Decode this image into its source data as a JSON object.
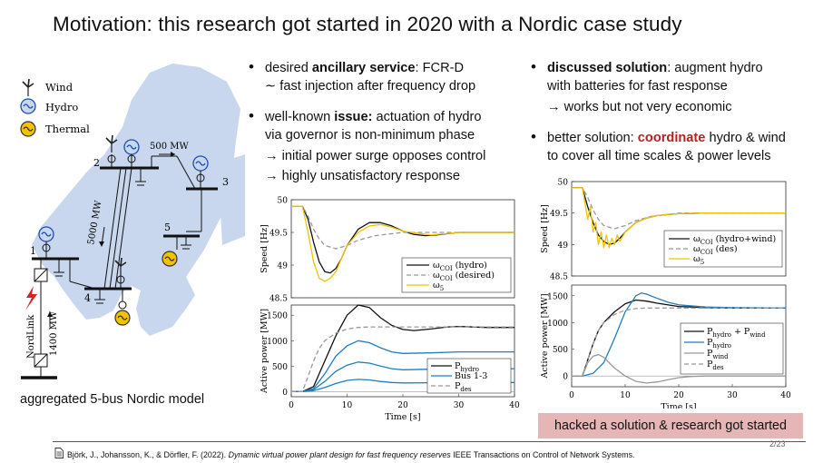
{
  "title": "Motivation: this research got started in 2020 with a Nordic case study",
  "legend_map": {
    "wind": "Wind",
    "hydro": "Hydro",
    "thermal": "Thermal"
  },
  "map": {
    "flow_top": "500 MW",
    "flow_mid": "5000 MW",
    "flow_link": "1400 MW",
    "link_name": "NordLink",
    "buses": [
      "1",
      "2",
      "3",
      "4",
      "5"
    ],
    "caption": "aggregated 5-bus Nordic model"
  },
  "middle": {
    "b1_l1a": "desired ",
    "b1_l1b": "ancillary service",
    "b1_l1c": ": FCR-D",
    "b1_l2": "∼ fast injection after frequency drop",
    "b2_l1a": "well-known ",
    "b2_l1b": "issue:",
    "b2_l1c": " actuation of hydro",
    "b2_l2": "via governor is non-minimum phase",
    "b2_s1": "→ initial power surge opposes control",
    "b2_s2": "→ highly unsatisfactory response"
  },
  "right": {
    "b1_l1a": "discussed solution",
    "b1_l1b": ": augment hydro",
    "b1_l2": "with batteries for fast response",
    "b1_s1": "→ works but not very economic",
    "b2_l1a": "better solution: ",
    "b2_l1b": "coordinate",
    "b2_l1c": " hydro & wind",
    "b2_l2": "to cover all time scales & power levels"
  },
  "hacked": "hacked a solution & research got started",
  "reference": {
    "authors": "Björk, J., Johansson, K., & Dörfler, F. (2022). ",
    "title": "Dynamic virtual power plant design for fast frequency reserves",
    "venue": " IEEE Transactions on Control of Network Systems."
  },
  "page": "2/23",
  "colors": {
    "accent_red": "#b22222",
    "hacked_bg": "#e6b5b5",
    "blue": "#1f7fbf",
    "yellow": "#f2c200",
    "gray": "#999999",
    "map_fill": "#c8d7ee"
  },
  "chart_data": [
    {
      "type": "line",
      "id": "mid-speed",
      "ylabel": "Speed [Hz]",
      "xlim": [
        0,
        40
      ],
      "ylim": [
        48.5,
        50
      ],
      "yticks": [
        "50",
        "49.5",
        "49",
        "48.5"
      ],
      "series": [
        {
          "name": "ω_COI (hydro)",
          "x": [
            0,
            2,
            3,
            4,
            5,
            6,
            7,
            8,
            9,
            10,
            12,
            14,
            16,
            18,
            20,
            22,
            24,
            26,
            28,
            30,
            35,
            40
          ],
          "y": [
            49.9,
            49.9,
            49.7,
            49.35,
            49.05,
            48.9,
            48.88,
            48.95,
            49.1,
            49.3,
            49.55,
            49.65,
            49.65,
            49.6,
            49.52,
            49.47,
            49.45,
            49.46,
            49.48,
            49.5,
            49.5,
            49.5
          ]
        },
        {
          "name": "ω_COI (desired)",
          "x": [
            0,
            2,
            3,
            4,
            5,
            6,
            8,
            10,
            12,
            15,
            20,
            25,
            30,
            40
          ],
          "y": [
            49.9,
            49.9,
            49.75,
            49.55,
            49.4,
            49.3,
            49.25,
            49.3,
            49.38,
            49.45,
            49.5,
            49.5,
            49.5,
            49.5
          ]
        },
        {
          "name": "ω_5",
          "x": [
            0,
            2,
            3,
            4,
            5,
            6,
            7,
            8,
            9,
            10,
            12,
            14,
            16,
            18,
            20,
            25,
            30,
            40
          ],
          "y": [
            49.9,
            49.9,
            49.5,
            49.05,
            48.8,
            48.75,
            48.8,
            48.9,
            49.1,
            49.3,
            49.5,
            49.6,
            49.62,
            49.58,
            49.52,
            49.46,
            49.5,
            49.5
          ]
        }
      ]
    },
    {
      "type": "line",
      "id": "mid-power",
      "ylabel": "Active power [MW]",
      "xlabel": "Time [s]",
      "xlim": [
        0,
        40
      ],
      "ylim": [
        -100,
        1700
      ],
      "xticks": [
        "0",
        "10",
        "20",
        "30",
        "40"
      ],
      "yticks": [
        "1500",
        "1000",
        "500",
        "0"
      ],
      "series": [
        {
          "name": "P_hydro",
          "x": [
            0,
            2,
            4,
            6,
            8,
            10,
            12,
            14,
            16,
            18,
            20,
            22,
            25,
            28,
            30,
            35,
            40
          ],
          "y": [
            0,
            0,
            100,
            600,
            1100,
            1500,
            1700,
            1650,
            1450,
            1300,
            1220,
            1200,
            1230,
            1270,
            1280,
            1260,
            1260
          ]
        },
        {
          "name": "Bus 1-3 (a)",
          "x": [
            0,
            2,
            4,
            6,
            8,
            10,
            12,
            14,
            16,
            18,
            20,
            25,
            30,
            35,
            40
          ],
          "y": [
            0,
            0,
            60,
            350,
            700,
            900,
            1000,
            960,
            860,
            780,
            750,
            760,
            780,
            780,
            780
          ]
        },
        {
          "name": "Bus 1-3 (b)",
          "x": [
            0,
            2,
            4,
            6,
            8,
            10,
            12,
            14,
            16,
            18,
            20,
            25,
            30,
            35,
            40
          ],
          "y": [
            0,
            0,
            40,
            200,
            400,
            520,
            580,
            560,
            500,
            450,
            430,
            440,
            450,
            450,
            450
          ]
        },
        {
          "name": "Bus 1-3 (c)",
          "x": [
            0,
            2,
            4,
            6,
            8,
            10,
            12,
            14,
            16,
            18,
            20,
            25,
            30,
            35,
            40
          ],
          "y": [
            0,
            0,
            20,
            80,
            160,
            220,
            240,
            230,
            200,
            180,
            170,
            175,
            180,
            180,
            180
          ]
        },
        {
          "name": "P_des",
          "x": [
            0,
            2,
            3,
            4,
            5,
            6,
            8,
            10,
            12,
            14,
            16,
            20,
            25,
            30,
            40
          ],
          "y": [
            0,
            0,
            300,
            600,
            850,
            1000,
            1150,
            1230,
            1260,
            1270,
            1270,
            1270,
            1270,
            1270,
            1270
          ]
        }
      ],
      "legend": [
        "P_hydro",
        "Bus 1-3",
        "P_des"
      ]
    },
    {
      "type": "line",
      "id": "right-speed",
      "ylabel": "Speed [Hz]",
      "xlim": [
        0,
        40
      ],
      "ylim": [
        48.5,
        50
      ],
      "yticks": [
        "50",
        "49.5",
        "49",
        "48.5"
      ],
      "series": [
        {
          "name": "ω_COI (hydro+wind)",
          "x": [
            0,
            2,
            3,
            4,
            5,
            6,
            7,
            8,
            9,
            10,
            12,
            14,
            16,
            20,
            25,
            30,
            40
          ],
          "y": [
            49.9,
            49.9,
            49.6,
            49.35,
            49.15,
            49.05,
            49.0,
            49.02,
            49.1,
            49.2,
            49.35,
            49.42,
            49.46,
            49.49,
            49.5,
            49.5,
            49.5
          ]
        },
        {
          "name": "ω_COI (des)",
          "x": [
            0,
            2,
            3,
            4,
            5,
            6,
            8,
            10,
            12,
            15,
            20,
            25,
            30,
            40
          ],
          "y": [
            49.9,
            49.9,
            49.75,
            49.55,
            49.4,
            49.3,
            49.25,
            49.3,
            49.38,
            49.45,
            49.5,
            49.5,
            49.5,
            49.5
          ]
        },
        {
          "name": "ω_5",
          "x": [
            0,
            2,
            3,
            3.5,
            4,
            4.5,
            5,
            5.5,
            6,
            6.5,
            7,
            7.5,
            8,
            8.5,
            9,
            10,
            12,
            14,
            16,
            20,
            25,
            30,
            40
          ],
          "y": [
            49.9,
            49.9,
            49.4,
            49.6,
            49.2,
            49.35,
            49.0,
            49.2,
            48.95,
            49.15,
            48.95,
            49.1,
            49.0,
            49.15,
            49.05,
            49.2,
            49.35,
            49.42,
            49.46,
            49.49,
            49.5,
            49.5,
            49.5
          ]
        }
      ]
    },
    {
      "type": "line",
      "id": "right-power",
      "ylabel": "Active power [MW]",
      "xlabel": "Time [s]",
      "xlim": [
        0,
        40
      ],
      "ylim": [
        -200,
        1700
      ],
      "xticks": [
        "0",
        "10",
        "20",
        "30",
        "40"
      ],
      "yticks": [
        "1500",
        "1000",
        "500",
        "0"
      ],
      "series": [
        {
          "name": "P_hydro + P_wind",
          "x": [
            0,
            2,
            3,
            4,
            5,
            6,
            8,
            10,
            12,
            14,
            16,
            20,
            25,
            30,
            40
          ],
          "y": [
            0,
            0,
            300,
            600,
            850,
            1000,
            1200,
            1350,
            1420,
            1400,
            1360,
            1300,
            1280,
            1270,
            1270
          ]
        },
        {
          "name": "P_hydro",
          "x": [
            0,
            2,
            4,
            6,
            8,
            10,
            12,
            13,
            14,
            16,
            18,
            20,
            25,
            30,
            40
          ],
          "y": [
            0,
            0,
            50,
            250,
            700,
            1200,
            1500,
            1550,
            1530,
            1450,
            1380,
            1330,
            1290,
            1280,
            1270
          ]
        },
        {
          "name": "P_wind",
          "x": [
            0,
            2,
            3,
            4,
            5,
            6,
            7,
            8,
            10,
            12,
            14,
            16,
            18,
            20,
            22,
            25,
            30,
            40
          ],
          "y": [
            0,
            0,
            250,
            370,
            400,
            350,
            250,
            150,
            0,
            -100,
            -130,
            -110,
            -70,
            -30,
            -10,
            0,
            0,
            0
          ]
        },
        {
          "name": "P_des",
          "x": [
            0,
            2,
            3,
            4,
            5,
            6,
            8,
            10,
            12,
            14,
            16,
            20,
            25,
            30,
            40
          ],
          "y": [
            0,
            0,
            300,
            600,
            850,
            1000,
            1150,
            1230,
            1260,
            1270,
            1270,
            1270,
            1270,
            1270,
            1270
          ]
        }
      ]
    }
  ]
}
